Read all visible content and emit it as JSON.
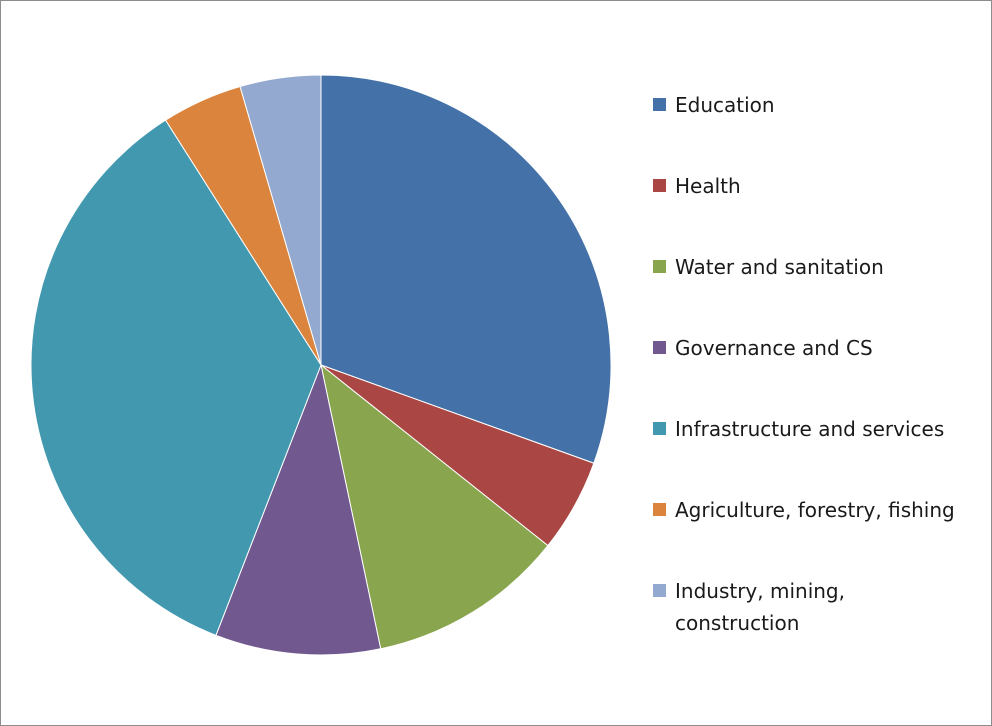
{
  "chart_data": {
    "type": "pie",
    "title": "",
    "legend_position": "right",
    "slices": [
      {
        "label": "Education",
        "value": 30.5,
        "color": "#4472a8"
      },
      {
        "label": "Health",
        "value": 5.2,
        "color": "#aa4643"
      },
      {
        "label": "Water and sanitation",
        "value": 11.0,
        "color": "#89a54e"
      },
      {
        "label": "Governance and CS",
        "value": 9.2,
        "color": "#71588f"
      },
      {
        "label": "Infrastructure and services",
        "value": 35.1,
        "color": "#4198af"
      },
      {
        "label": "Agriculture, forestry, fishing",
        "value": 4.5,
        "color": "#db843d"
      },
      {
        "label": "Industry, mining, construction",
        "value": 4.5,
        "color": "#93a9cf"
      }
    ]
  }
}
